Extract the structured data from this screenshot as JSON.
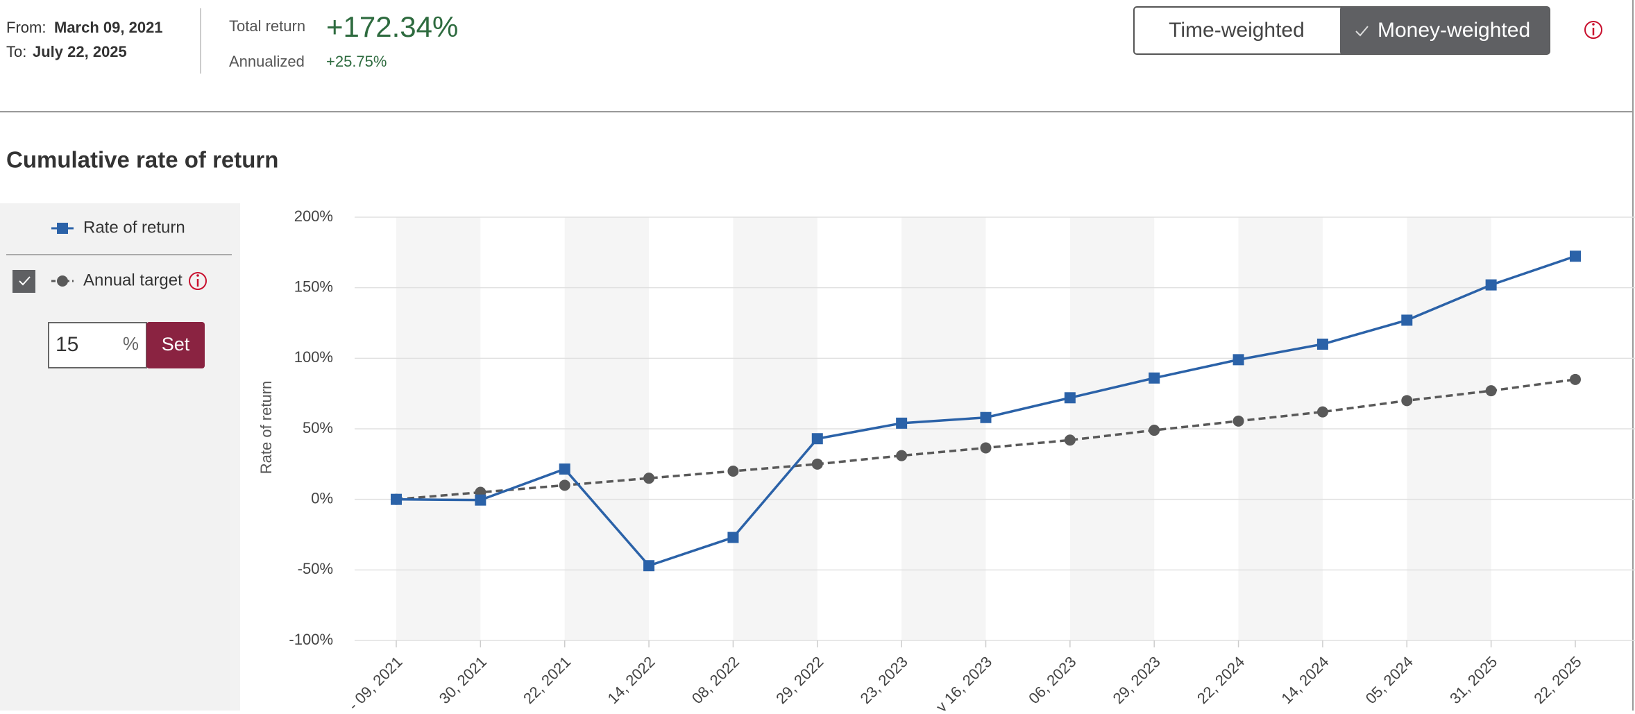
{
  "header": {
    "from_label": "From:",
    "from_date": "March 09, 2021",
    "to_label": "To:",
    "to_date": "July 22, 2025",
    "total_return_label": "Total return",
    "total_return": "+172.34%",
    "annualized_label": "Annualized",
    "annualized": "+25.75%",
    "toggle": [
      "Time-weighted",
      "Money-weighted"
    ]
  },
  "sidebar": {
    "target_value": "15",
    "target_unit": "%",
    "set_button": "Set"
  },
  "chart_data": {
    "type": "line",
    "title": "Cumulative rate of return",
    "y_label": "Rate of return",
    "categories": [
      "- 09, 2021",
      "30, 2021",
      "22, 2021",
      "14, 2022",
      "08, 2022",
      "29, 2022",
      "23, 2023",
      "y 16, 2023",
      "06, 2023",
      "29, 2023",
      "22, 2024",
      "14, 2024",
      "05, 2024",
      "31, 2025",
      "22, 2025"
    ],
    "series": [
      {
        "name": "Rate of return",
        "color": "#2b62a8",
        "marker": "square",
        "dashed": false,
        "values": [
          0,
          -0.5,
          21.5,
          -47,
          -27,
          43,
          54,
          58,
          72,
          86,
          99,
          110,
          127,
          152,
          172.34
        ]
      },
      {
        "name": "Annual target",
        "color": "#595959",
        "marker": "circle",
        "dashed": true,
        "values": [
          0,
          5,
          10,
          15,
          20,
          25,
          31,
          36.5,
          42,
          49,
          55.5,
          62,
          70,
          77,
          85
        ]
      }
    ],
    "ylim": [
      -100,
      200
    ],
    "yticks": [
      {
        "value": -100,
        "label": "-100%"
      },
      {
        "value": -50,
        "label": "-50%"
      },
      {
        "value": 0,
        "label": "0%"
      },
      {
        "value": 50,
        "label": "50%"
      },
      {
        "value": 100,
        "label": "100%"
      },
      {
        "value": 150,
        "label": "150%"
      },
      {
        "value": 200,
        "label": "200%"
      }
    ],
    "grid": true
  }
}
